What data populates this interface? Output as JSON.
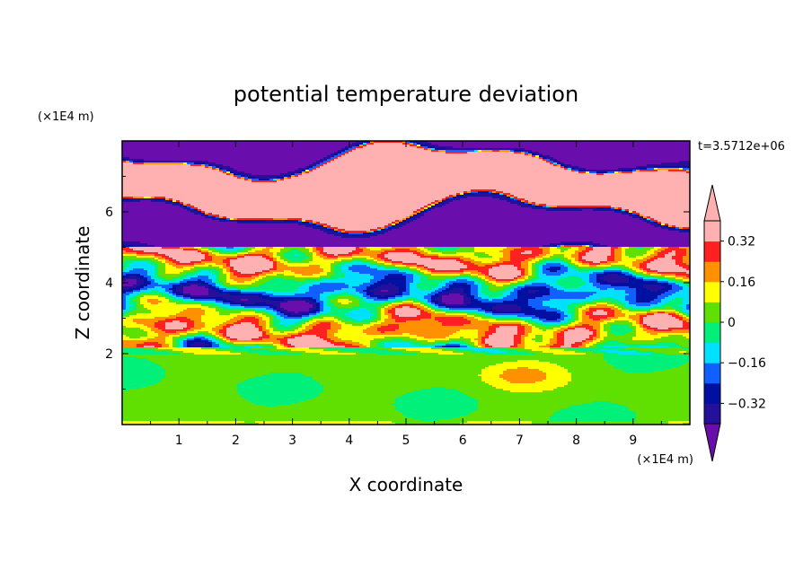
{
  "chart_data": {
    "type": "heatmap",
    "title": "potential temperature deviation",
    "xlabel": "X coordinate",
    "ylabel": "Z coordinate",
    "x_unit": "(×1E4 m)",
    "y_unit": "(×1E4 m)",
    "time_label": "t=3.5712e+06",
    "xlim": [
      0,
      10
    ],
    "ylim": [
      0,
      8
    ],
    "x_ticks": [
      1,
      2,
      3,
      4,
      5,
      6,
      7,
      8,
      9
    ],
    "y_ticks": [
      2,
      4,
      6
    ],
    "colorbar": {
      "levels": [
        -0.4,
        -0.32,
        -0.24,
        -0.16,
        -0.08,
        0,
        0.08,
        0.16,
        0.24,
        0.32,
        0.4
      ],
      "labels": [
        "0.32",
        "0.16",
        "0",
        "−0.16",
        "−0.32"
      ],
      "label_values": [
        0.32,
        0.16,
        0,
        -0.16,
        -0.32
      ],
      "colors": [
        "#6a0dad",
        "#24109a",
        "#0010a0",
        "#1060ff",
        "#00e0ff",
        "#00f07a",
        "#60e000",
        "#ffff00",
        "#ff9000",
        "#ff2020",
        "#ffb0b0"
      ],
      "extend": "both"
    },
    "field_description": "Upper layer (z>5) alternating horizontal bands of strong positive and negative deviation; middle layer (2.2–5) turbulent mixed structures; lower layer (z<2) near-zero values."
  }
}
